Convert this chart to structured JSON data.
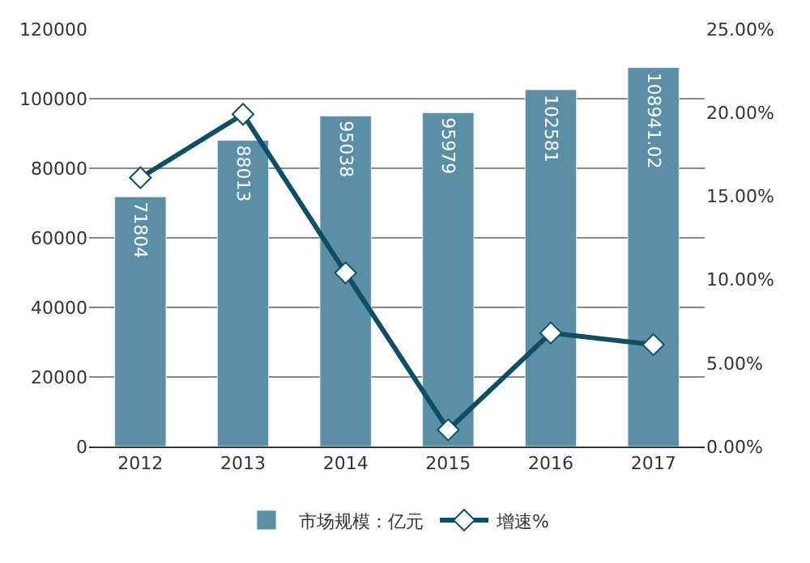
{
  "chart_data": {
    "type": "bar",
    "categories": [
      "2012",
      "2013",
      "2014",
      "2015",
      "2016",
      "2017"
    ],
    "series": [
      {
        "name": "市场规模：亿元",
        "color": "#5b8fa6",
        "values": [
          71804,
          88013,
          95038,
          95979,
          102581,
          108941.02
        ],
        "value_labels": [
          "71804",
          "88013",
          "95038",
          "95979",
          "102581",
          "108941.02"
        ]
      },
      {
        "name": "增速%",
        "type": "line",
        "axis": "y2",
        "color": "#0e4f66",
        "marker": "diamond",
        "values": [
          16.1,
          19.9,
          10.4,
          1.0,
          6.8,
          6.1
        ]
      }
    ],
    "ylim": [
      0,
      120000
    ],
    "yticks": [
      0,
      20000,
      40000,
      60000,
      80000,
      100000,
      120000
    ],
    "y2lim": [
      0,
      25
    ],
    "y2ticks": [
      {
        "value": 0,
        "label": "0.00%"
      },
      {
        "value": 5,
        "label": "5.00%"
      },
      {
        "value": 10,
        "label": "10.00%"
      },
      {
        "value": 15,
        "label": "15.00%"
      },
      {
        "value": 20,
        "label": "20.00%"
      },
      {
        "value": 25,
        "label": "25.00%"
      }
    ],
    "grid": "y",
    "legend": "bottom"
  }
}
